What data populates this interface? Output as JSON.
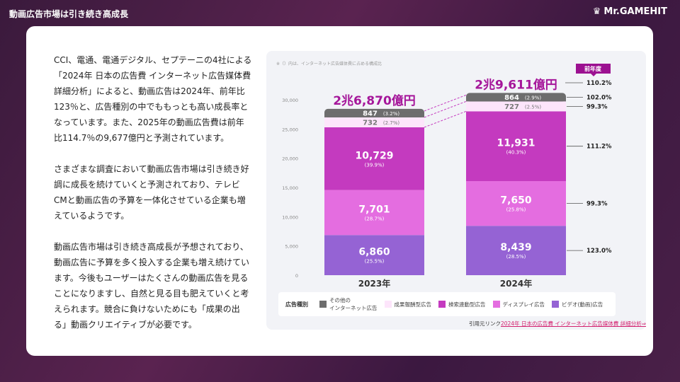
{
  "header": {
    "title": "動画広告市場は引き続き高成長",
    "logo": "Mr.GAMEHIT"
  },
  "body": {
    "paragraphs": [
      "CCI、電通、電通デジタル、セプテーニの4社による「2024年 日本の広告費 インターネット広告媒体費 詳細分析」によると、動画広告は2024年、前年比123％と、広告種別の中でももっとも高い成長率となっています。また、2025年の動画広告費は前年比114.7％の9,677億円と予測されています。",
      "さまざまな調査において動画広告市場は引き続き好調に成長を続けていくと予測されており、テレビCMと動画広告の予算を一体化させている企業も増えているようです。",
      "動画広告市場は引き続き高成長が予想されており、動画広告に予算を多く投入する企業も増え続けています。今後もユーザーはたくさんの動画広告を見ることになりますし、自然と見る目も肥えていくと考えられます。競合に負けないためにも「成果の出る」動画クリエイティブが必要です。"
    ]
  },
  "chart_data": {
    "type": "stacked-bar",
    "note": "※（）内は、インターネット広告媒体費に占める構成比",
    "categories": [
      "2023年",
      "2024年"
    ],
    "totals": [
      "2兆6,870億円",
      "2兆9,611億円"
    ],
    "ylim": [
      0,
      30000
    ],
    "yticks": [
      "0",
      "5,000",
      "10,000",
      "15,000",
      "20,000",
      "25,000",
      "30,000"
    ],
    "series": [
      {
        "name": "ビデオ(動画)広告",
        "color": "#9563d4",
        "values": [
          6860,
          8439
        ],
        "shares": [
          "(25.5%)",
          "(28.5%)"
        ],
        "yoy": "123.0%"
      },
      {
        "name": "ディスプレイ広告",
        "color": "#e46de0",
        "values": [
          7701,
          7650
        ],
        "shares": [
          "(28.7%)",
          "(25.8%)"
        ],
        "yoy": "99.3%"
      },
      {
        "name": "検索連動型広告",
        "color": "#c43abf",
        "values": [
          10729,
          11931
        ],
        "shares": [
          "(39.9%)",
          "(40.3%)"
        ],
        "yoy": "111.2%"
      },
      {
        "name": "成果報酬型広告",
        "color": "#fde5fb",
        "values": [
          732,
          727
        ],
        "shares": [
          "(2.7%)",
          "(2.5%)"
        ],
        "yoy": "99.3%"
      },
      {
        "name": "その他のインターネット広告",
        "color": "#6d6d6d",
        "values": [
          847,
          864
        ],
        "shares": [
          "(3.2%)",
          "(2.9%)"
        ],
        "yoy": "102.0%"
      }
    ],
    "total_yoy": "110.2%",
    "yoy_header": "前年度",
    "legend_title": "広告種別",
    "legend_labels": [
      "その他の\nインターネット広告",
      "成果報酬型広告",
      "検索連動型広告",
      "ディスプレイ広告",
      "ビデオ(動画)広告"
    ]
  },
  "source": {
    "label": "引用元リンク",
    "link": "2024年 日本の広告費 インターネット広告媒体費 詳細分析⇒"
  }
}
